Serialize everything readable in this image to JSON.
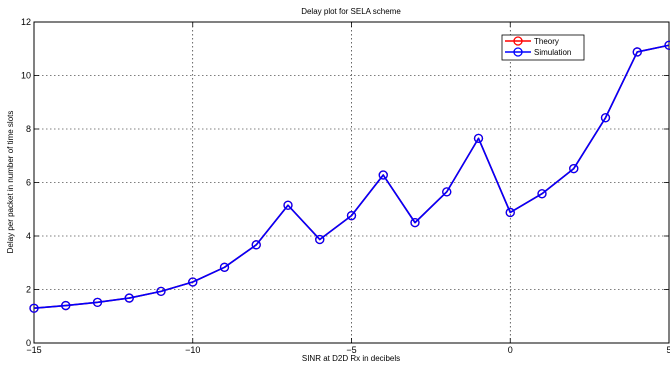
{
  "chart_data": {
    "type": "line",
    "title": "Delay plot for SELA scheme",
    "xlabel": "SINR at D2D Rx in decibels",
    "ylabel": "Delay per packet in number of time slots",
    "xlim": [
      -15,
      5
    ],
    "ylim": [
      0,
      12
    ],
    "xticks": [
      -15,
      -10,
      -5,
      0,
      5
    ],
    "xtick_labels": [
      "−15",
      "−10",
      "−5",
      "0",
      "5"
    ],
    "yticks": [
      0,
      2,
      4,
      6,
      8,
      10,
      12
    ],
    "ytick_labels": [
      "0",
      "2",
      "4",
      "6",
      "8",
      "10",
      "12"
    ],
    "grid": true,
    "legend_position": "top-right",
    "x": [
      -15,
      -14,
      -13,
      -12,
      -11,
      -10,
      -9,
      -8,
      -7,
      -6,
      -5,
      -4,
      -3,
      -2,
      -1,
      0,
      1,
      2,
      3,
      4,
      5
    ],
    "series": [
      {
        "name": "Theory",
        "color": "#ff0000",
        "marker": "circle",
        "values": [
          1.3,
          1.4,
          1.52,
          1.68,
          1.93,
          2.28,
          2.83,
          3.67,
          5.15,
          3.87,
          4.76,
          6.28,
          4.5,
          5.65,
          7.65,
          4.88,
          5.58,
          6.52,
          8.42,
          10.88,
          11.13
        ]
      },
      {
        "name": "Simulation",
        "color": "#0000ff",
        "marker": "circle",
        "values": [
          1.3,
          1.4,
          1.52,
          1.68,
          1.93,
          2.28,
          2.83,
          3.67,
          5.15,
          3.87,
          4.76,
          6.28,
          4.5,
          5.65,
          7.65,
          4.88,
          5.58,
          6.52,
          8.42,
          10.88,
          11.13
        ]
      }
    ]
  }
}
